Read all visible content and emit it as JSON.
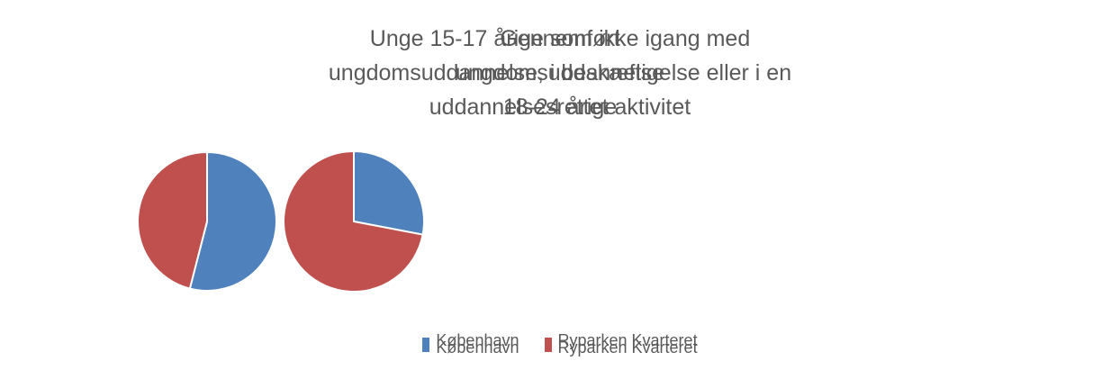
{
  "chart_data": [
    {
      "type": "pie",
      "title": "Gennemført ungdomsuddannelse 18-24 årige",
      "categories": [
        "København",
        "Ryparken Kvarteret"
      ],
      "values": [
        54,
        46
      ],
      "colors": [
        "#4f81bd",
        "#c0504d"
      ],
      "legend": "bottom"
    },
    {
      "type": "pie",
      "title": "Unge 15-17 årige som ikke igang med ungdomsuddannelse, i beskæftigelse eller i en uddannelsesrettet aktivitet",
      "categories": [
        "København",
        "Ryparken Kvarteret"
      ],
      "values": [
        28,
        72
      ],
      "colors": [
        "#4f81bd",
        "#c0504d"
      ],
      "legend": "bottom"
    }
  ]
}
